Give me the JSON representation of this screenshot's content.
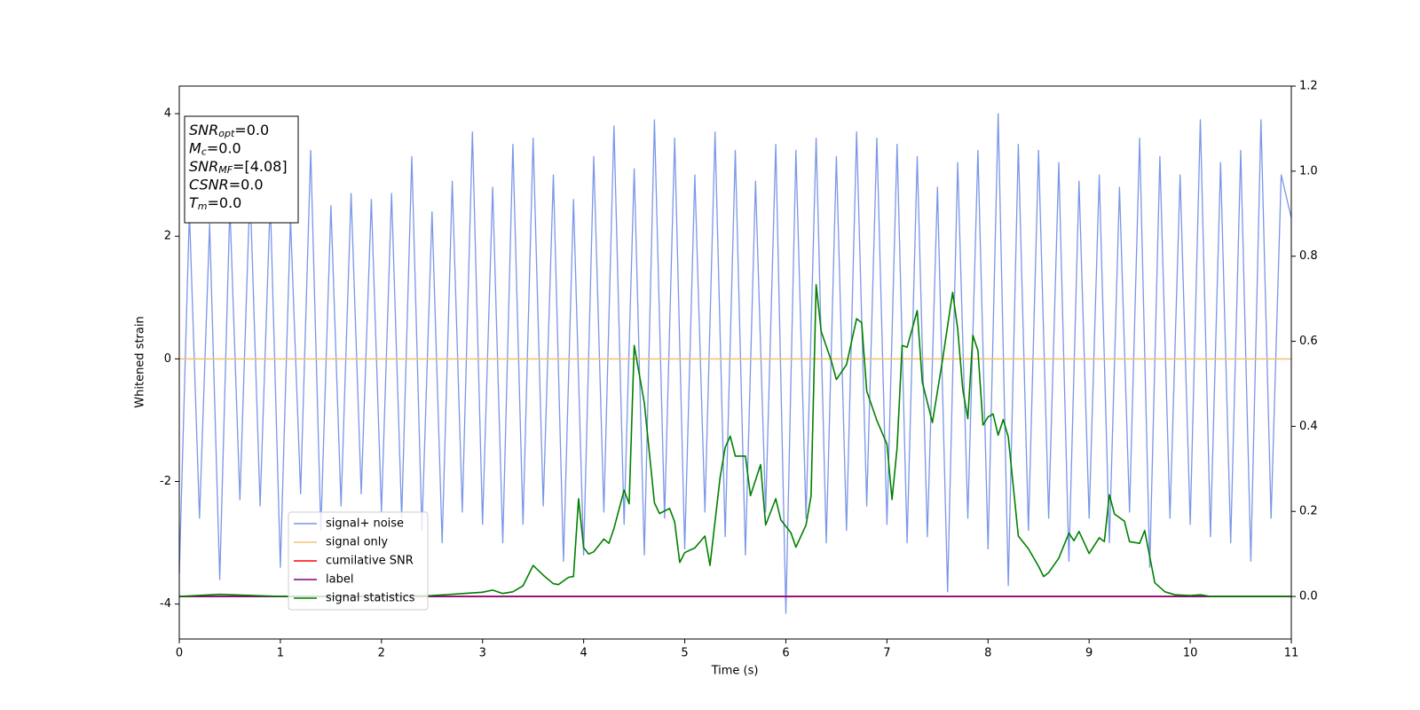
{
  "chart_data": {
    "type": "line",
    "xlabel": "Time (s)",
    "ylabel": "Whitened strain",
    "xlim": [
      0,
      11
    ],
    "xticks": [
      0,
      1,
      2,
      3,
      4,
      5,
      6,
      7,
      8,
      9,
      10,
      11
    ],
    "ylim": [
      -4.57,
      4.45
    ],
    "yticks": [
      -4,
      -2,
      0,
      2,
      4
    ],
    "y2lim": [
      -0.1,
      1.2
    ],
    "y2ticks": [
      {
        "value": 0,
        "label": "0.0"
      },
      0.2,
      0.4,
      0.6,
      0.8,
      {
        "value": 1,
        "label": "1.0"
      },
      1.2
    ],
    "legend": "lower left",
    "annotation": [
      {
        "base": "SNR",
        "sub": "opt",
        "rest": "=0.0"
      },
      {
        "base": "M",
        "sub": "c",
        "rest": "=0.0"
      },
      {
        "base": "SNR",
        "sub": "MF",
        "rest": "=[4.08]"
      },
      {
        "base": "CSNR",
        "sub": null,
        "rest": "=0.0"
      },
      {
        "base": "T",
        "sub": "m",
        "rest": "=0.0"
      }
    ],
    "series": [
      {
        "name": "signal+ noise",
        "color": "#7a96e8",
        "x": [
          0,
          0.1,
          0.2,
          0.3,
          0.4,
          0.5,
          0.6,
          0.7,
          0.8,
          0.9,
          1,
          1.1,
          1.2,
          1.3,
          1.4,
          1.5,
          1.6,
          1.7,
          1.8,
          1.9,
          2,
          2.1,
          2.2,
          2.3,
          2.4,
          2.5,
          2.6,
          2.7,
          2.8,
          2.9,
          3,
          3.1,
          3.2,
          3.3,
          3.4,
          3.5,
          3.6,
          3.7,
          3.8,
          3.9,
          4,
          4.1,
          4.2,
          4.3,
          4.4,
          4.5,
          4.6,
          4.7,
          4.8,
          4.9,
          5,
          5.1,
          5.2,
          5.3,
          5.4,
          5.5,
          5.6,
          5.7,
          5.8,
          5.9,
          6,
          6.1,
          6.2,
          6.3,
          6.4,
          6.5,
          6.6,
          6.7,
          6.8,
          6.9,
          7,
          7.1,
          7.2,
          7.3,
          7.4,
          7.5,
          7.6,
          7.7,
          7.8,
          7.9,
          8,
          8.1,
          8.2,
          8.3,
          8.4,
          8.5,
          8.6,
          8.7,
          8.8,
          8.9,
          9,
          9.1,
          9.2,
          9.3,
          9.4,
          9.5,
          9.6,
          9.7,
          9.8,
          9.9,
          10,
          10.1,
          10.2,
          10.3,
          10.4,
          10.5,
          10.6,
          10.7,
          10.8,
          10.9,
          11
        ],
        "values": [
          -3.5,
          2.4,
          -2.6,
          2.2,
          -3.6,
          2.5,
          -2.3,
          2.8,
          -2.4,
          2.6,
          -3.4,
          2.3,
          -2.2,
          3.4,
          -2.8,
          2.5,
          -2.4,
          2.7,
          -2.2,
          2.6,
          -2.5,
          2.7,
          -2.6,
          3.3,
          -2.8,
          2.4,
          -3.0,
          2.9,
          -2.5,
          3.7,
          -2.7,
          2.8,
          -3.0,
          3.5,
          -2.7,
          3.6,
          -2.4,
          3.0,
          -3.3,
          2.6,
          -3.2,
          3.3,
          -2.5,
          3.8,
          -2.7,
          3.1,
          -3.2,
          3.9,
          -2.6,
          3.6,
          -3.1,
          3.0,
          -2.5,
          3.7,
          -2.9,
          3.4,
          -3.2,
          2.9,
          -2.5,
          3.5,
          -4.15,
          3.4,
          -2.6,
          3.6,
          -3.0,
          3.3,
          -2.8,
          3.7,
          -2.4,
          3.6,
          -2.7,
          3.5,
          -3.0,
          3.3,
          -2.9,
          2.8,
          -3.8,
          3.2,
          -2.6,
          3.4,
          -3.1,
          4.0,
          -3.7,
          3.5,
          -2.8,
          3.4,
          -2.6,
          3.2,
          -3.3,
          2.9,
          -2.6,
          3.0,
          -3.0,
          2.8,
          -2.5,
          3.6,
          -3.4,
          3.3,
          -2.6,
          3.0,
          -2.7,
          3.9,
          -2.9,
          3.2,
          -3.0,
          3.4,
          -3.3,
          3.9,
          -2.6,
          3.0,
          2.3
        ]
      },
      {
        "name": "signal only",
        "color": "#f5c27a",
        "x": [
          0,
          11
        ],
        "values": [
          0,
          0
        ]
      },
      {
        "name": "cumilative SNR",
        "color": "#ff0000",
        "axis": "y2",
        "x": [
          0,
          11
        ],
        "values": [
          0,
          0
        ]
      },
      {
        "name": "label",
        "color": "#800080",
        "axis": "y2",
        "x": [
          0,
          11
        ],
        "values": [
          0,
          0
        ]
      },
      {
        "name": "signal statistics",
        "color": "#008000",
        "axis": "y2",
        "x": [
          0,
          0.4,
          1,
          2,
          2.5,
          3,
          3.1,
          3.2,
          3.3,
          3.4,
          3.5,
          3.6,
          3.7,
          3.75,
          3.85,
          3.9,
          3.95,
          4,
          4.05,
          4.1,
          4.2,
          4.25,
          4.3,
          4.4,
          4.45,
          4.5,
          4.6,
          4.7,
          4.75,
          4.85,
          4.9,
          4.95,
          5,
          5.1,
          5.2,
          5.25,
          5.35,
          5.4,
          5.45,
          5.5,
          5.6,
          5.65,
          5.75,
          5.8,
          5.9,
          5.95,
          6.05,
          6.1,
          6.2,
          6.25,
          6.3,
          6.35,
          6.45,
          6.5,
          6.6,
          6.7,
          6.75,
          6.8,
          6.9,
          7,
          7.05,
          7.1,
          7.15,
          7.2,
          7.3,
          7.35,
          7.45,
          7.55,
          7.65,
          7.7,
          7.75,
          7.8,
          7.85,
          7.9,
          7.95,
          8,
          8.05,
          8.1,
          8.15,
          8.2,
          8.3,
          8.4,
          8.5,
          8.55,
          8.6,
          8.7,
          8.8,
          8.85,
          8.9,
          9,
          9.1,
          9.15,
          9.2,
          9.25,
          9.35,
          9.4,
          9.5,
          9.55,
          9.65,
          9.75,
          9.85,
          10,
          10.1,
          10.2,
          11
        ],
        "values": [
          0,
          0.005,
          0,
          0,
          0.002,
          0.01,
          0.015,
          0.007,
          0.011,
          0.025,
          0.073,
          0.05,
          0.03,
          0.028,
          0.045,
          0.047,
          0.23,
          0.115,
          0.1,
          0.105,
          0.135,
          0.125,
          0.16,
          0.25,
          0.218,
          0.59,
          0.455,
          0.22,
          0.195,
          0.207,
          0.175,
          0.08,
          0.103,
          0.114,
          0.142,
          0.073,
          0.28,
          0.35,
          0.377,
          0.33,
          0.33,
          0.237,
          0.31,
          0.168,
          0.23,
          0.18,
          0.15,
          0.116,
          0.168,
          0.237,
          0.733,
          0.623,
          0.554,
          0.51,
          0.545,
          0.653,
          0.644,
          0.483,
          0.414,
          0.358,
          0.228,
          0.349,
          0.59,
          0.586,
          0.672,
          0.504,
          0.409,
          0.556,
          0.715,
          0.629,
          0.487,
          0.418,
          0.614,
          0.578,
          0.403,
          0.422,
          0.429,
          0.379,
          0.416,
          0.375,
          0.142,
          0.112,
          0.071,
          0.047,
          0.056,
          0.09,
          0.149,
          0.131,
          0.153,
          0.101,
          0.138,
          0.129,
          0.239,
          0.194,
          0.177,
          0.129,
          0.125,
          0.155,
          0.032,
          0.011,
          0.004,
          0.002,
          0.004,
          0,
          0
        ]
      }
    ]
  }
}
